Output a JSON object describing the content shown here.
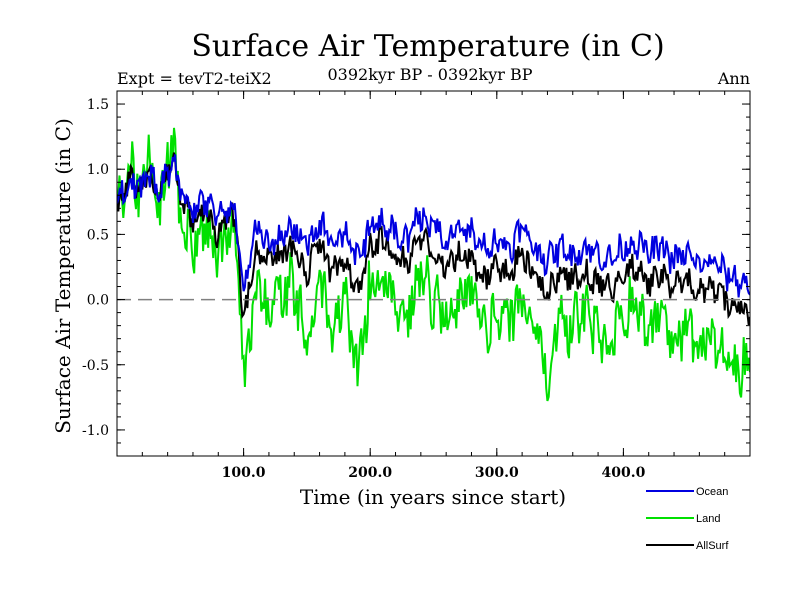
{
  "chart_data": {
    "type": "line",
    "title": "Surface Air Temperature (in C)",
    "subtitle": "0392kyr BP - 0392kyr BP",
    "left_label": "Expt = tevT2-teiX2",
    "right_label": "Ann",
    "xlabel": "Time (in years since start)",
    "ylabel": "Surface Air Temperature (in C)",
    "xlim": [
      0,
      500
    ],
    "ylim": [
      -1.2,
      1.6
    ],
    "x_ticks": [
      100,
      200,
      300,
      400
    ],
    "x_tick_labels": [
      "100.0",
      "200.0",
      "300.0",
      "400.0"
    ],
    "y_ticks": [
      -1.0,
      -0.5,
      0.0,
      0.5,
      1.0,
      1.5
    ],
    "y_tick_labels": [
      "-1.0",
      "-0.5",
      "0.0",
      "0.5",
      "1.0",
      "1.5"
    ],
    "zero_line": true,
    "grid": false,
    "legend_position": "bottom-right",
    "x": [
      0,
      10,
      20,
      25,
      30,
      40,
      45,
      50,
      60,
      70,
      80,
      90,
      95,
      100,
      105,
      110,
      120,
      130,
      140,
      150,
      160,
      170,
      180,
      190,
      200,
      210,
      220,
      230,
      240,
      250,
      260,
      270,
      280,
      290,
      300,
      310,
      320,
      330,
      340,
      350,
      360,
      370,
      380,
      390,
      400,
      410,
      420,
      430,
      440,
      450,
      460,
      470,
      480,
      490,
      500
    ],
    "series": [
      {
        "name": "Ocean",
        "color": "#0000e0",
        "values": [
          0.75,
          0.9,
          0.85,
          1.0,
          0.85,
          0.95,
          1.05,
          0.85,
          0.7,
          0.75,
          0.6,
          0.75,
          0.55,
          0.0,
          0.3,
          0.55,
          0.45,
          0.5,
          0.55,
          0.4,
          0.6,
          0.4,
          0.5,
          0.3,
          0.55,
          0.6,
          0.5,
          0.45,
          0.65,
          0.55,
          0.45,
          0.55,
          0.5,
          0.4,
          0.45,
          0.4,
          0.55,
          0.4,
          0.3,
          0.4,
          0.35,
          0.4,
          0.35,
          0.3,
          0.4,
          0.45,
          0.35,
          0.4,
          0.3,
          0.35,
          0.25,
          0.3,
          0.2,
          0.15,
          0.1
        ]
      },
      {
        "name": "Land",
        "color": "#00e000",
        "values": [
          0.7,
          1.0,
          0.8,
          1.2,
          0.6,
          1.0,
          1.25,
          0.6,
          0.4,
          0.6,
          0.3,
          0.55,
          0.35,
          -0.65,
          -0.2,
          0.1,
          -0.1,
          0.05,
          0.1,
          -0.35,
          0.1,
          -0.2,
          0.0,
          -0.6,
          0.1,
          0.2,
          -0.05,
          -0.1,
          0.2,
          -0.05,
          -0.15,
          0.0,
          0.05,
          -0.3,
          -0.1,
          -0.15,
          0.05,
          -0.3,
          -0.6,
          -0.15,
          -0.2,
          -0.1,
          -0.25,
          -0.3,
          -0.1,
          -0.05,
          -0.25,
          -0.1,
          -0.3,
          -0.15,
          -0.35,
          -0.3,
          -0.4,
          -0.5,
          -0.55
        ]
      },
      {
        "name": "AllSurf",
        "color": "#000000",
        "values": [
          0.72,
          0.92,
          0.82,
          1.05,
          0.78,
          0.95,
          1.1,
          0.78,
          0.6,
          0.7,
          0.5,
          0.68,
          0.48,
          -0.2,
          0.15,
          0.4,
          0.3,
          0.35,
          0.4,
          0.2,
          0.45,
          0.2,
          0.3,
          0.05,
          0.4,
          0.45,
          0.32,
          0.28,
          0.5,
          0.35,
          0.25,
          0.35,
          0.32,
          0.15,
          0.25,
          0.2,
          0.35,
          0.18,
          0.05,
          0.2,
          0.15,
          0.2,
          0.12,
          0.08,
          0.2,
          0.25,
          0.12,
          0.2,
          0.08,
          0.15,
          0.05,
          0.08,
          0.0,
          -0.05,
          -0.1
        ]
      }
    ]
  }
}
